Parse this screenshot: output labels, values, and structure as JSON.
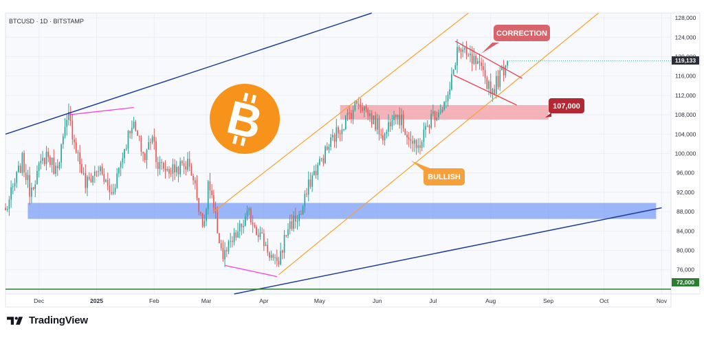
{
  "header": {
    "symbol_line": "BTCUSD · 1D · BITSTAMP"
  },
  "annotations": {
    "correction": "CORRECTION",
    "level_107": "107,000",
    "bullish": "BULLISH",
    "level_72": "72,000",
    "current_price": "119,133"
  },
  "footer": {
    "brand": "TradingView"
  },
  "colors": {
    "up": "#26a69a",
    "down": "#ef5350",
    "correction_label": "#d9636b",
    "level_label": "#b22833",
    "bullish_label": "#f5a03a",
    "support_zone": "#7b9ef5",
    "resistance_zone": "#f3a1a8",
    "channel_orange": "#f7a128",
    "trend_navy": "#1f3c9a",
    "magenta": "#ff40d4",
    "green_line": "#2e7d32",
    "bitcoin": "#f7931a"
  },
  "chart_data": {
    "type": "candlestick",
    "y_axis": {
      "range": [
        71000,
        129000
      ],
      "ticks": [
        76000,
        80000,
        84000,
        88000,
        92000,
        96000,
        100000,
        104000,
        108000,
        112000,
        116000,
        120000,
        124000,
        128000
      ],
      "tick_labels": [
        "76,000",
        "80,000",
        "84,000",
        "88,000",
        "92,000",
        "96,000",
        "100,000",
        "104,000",
        "108,000",
        "112,000",
        "116,000",
        "120,000",
        "124,000",
        "128,000"
      ]
    },
    "x_axis": {
      "labels": [
        "Dec",
        "2025",
        "Feb",
        "Mar",
        "Apr",
        "May",
        "Jun",
        "Jul",
        "Aug",
        "Sep",
        "Oct",
        "Nov"
      ],
      "dates": [
        "2024-12-01",
        "2025-01-01",
        "2025-02-01",
        "2025-03-01",
        "2025-04-01",
        "2025-05-01",
        "2025-06-01",
        "2025-07-01",
        "2025-08-01",
        "2025-09-01",
        "2025-10-01",
        "2025-11-01"
      ]
    },
    "price_path": [
      [
        "2024-11-13",
        88000
      ],
      [
        "2024-11-22",
        98500
      ],
      [
        "2024-11-26",
        92500
      ],
      [
        "2024-12-05",
        100000
      ],
      [
        "2024-12-10",
        96500
      ],
      [
        "2024-12-17",
        107500
      ],
      [
        "2024-12-26",
        93500
      ],
      [
        "2025-01-02",
        97000
      ],
      [
        "2025-01-09",
        91500
      ],
      [
        "2025-01-20",
        106500
      ],
      [
        "2025-01-27",
        99000
      ],
      [
        "2025-01-31",
        104500
      ],
      [
        "2025-02-03",
        97500
      ],
      [
        "2025-02-10",
        96500
      ],
      [
        "2025-02-20",
        98000
      ],
      [
        "2025-02-28",
        84500
      ],
      [
        "2025-03-02",
        94000
      ],
      [
        "2025-03-10",
        78500
      ],
      [
        "2025-03-24",
        87500
      ],
      [
        "2025-03-31",
        82500
      ],
      [
        "2025-04-08",
        76500
      ],
      [
        "2025-04-14",
        85000
      ],
      [
        "2025-04-21",
        87500
      ],
      [
        "2025-04-26",
        94500
      ],
      [
        "2025-05-08",
        103000
      ],
      [
        "2025-05-22",
        111000
      ],
      [
        "2025-06-05",
        103500
      ],
      [
        "2025-06-10",
        109500
      ],
      [
        "2025-06-22",
        100500
      ],
      [
        "2025-06-30",
        107500
      ],
      [
        "2025-07-09",
        111000
      ],
      [
        "2025-07-14",
        121500
      ],
      [
        "2025-07-24",
        118500
      ],
      [
        "2025-08-02",
        113000
      ],
      [
        "2025-08-10",
        119133
      ]
    ],
    "zones": [
      {
        "kind": "support",
        "from": 86500,
        "to": 89800,
        "start": "2024-11-25",
        "end": "2025-10-29"
      },
      {
        "kind": "resistance",
        "from": 107000,
        "to": 110000,
        "start": "2025-05-12",
        "end": "2025-09-01",
        "label": "107,000"
      }
    ],
    "horizontal_levels": [
      {
        "price": 72000,
        "label": "72,000"
      }
    ],
    "trendlines": [
      {
        "kind": "channel_upper",
        "from": [
          "2025-03-05",
          88000
        ],
        "to": [
          "2025-07-20",
          129000
        ]
      },
      {
        "kind": "channel_lower",
        "from": [
          "2025-04-09",
          75000
        ],
        "to": [
          "2025-09-28",
          129000
        ]
      },
      {
        "kind": "long_term_upper",
        "from": [
          "2024-11-13",
          104000
        ],
        "to": [
          "2025-05-29",
          129000
        ]
      },
      {
        "kind": "long_term_lower",
        "from": [
          "2025-03-16",
          71000
        ],
        "to": [
          "2025-11-01",
          88800
        ]
      }
    ],
    "current_price": 119133
  }
}
